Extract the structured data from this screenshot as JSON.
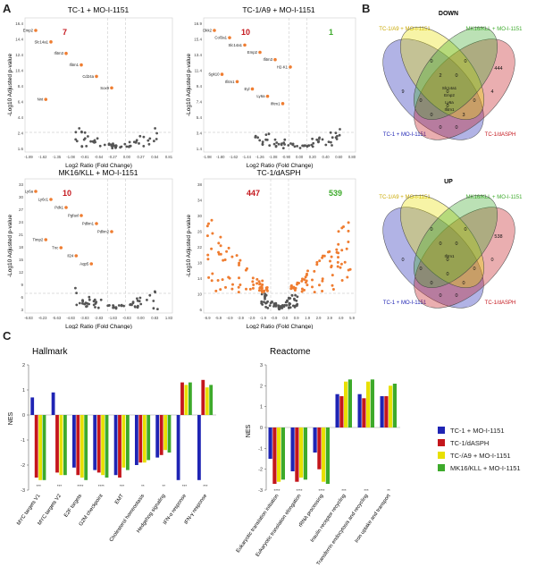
{
  "panels": {
    "a": "A",
    "b": "B",
    "c": "C"
  },
  "colors": {
    "tc1": "#1f24b4",
    "dasph": "#c4161c",
    "a9": "#e8e000",
    "mk": "#3daa2b",
    "up": "#ef7d31",
    "gray": "#555555"
  },
  "volcanoes": [
    {
      "title": "TC-1 + MO-I-1151",
      "count_down": "7",
      "count_up": "",
      "xlabel": "Log2 Ratio (Fold Change)",
      "ylabel": "-Log10 Adjusted p-value",
      "xticks": [
        "-1.89",
        "-1.62",
        "-1.35",
        "-1.08",
        "-0.81",
        "-0.54",
        "-0.27",
        "0.00",
        "0.27",
        "0.54",
        "0.81"
      ],
      "yticks": [
        "16.4",
        "14.4",
        "12.4",
        "10.4",
        "8.4",
        "6.4",
        "4.4",
        "2.4",
        "1.6"
      ],
      "labels": [
        "Emp2",
        "Slc14a1",
        "Ifitm3",
        "Ifitm1",
        "Cd24a",
        "Sox9",
        "Nnt"
      ]
    },
    {
      "title": "TC-1/A9 + MO-I-1151",
      "count_down": "10",
      "count_up": "1",
      "xlabel": "Log2 Ratio (Fold Change)",
      "ylabel": "-Log10 Adjusted p-value",
      "xticks": [
        "-1.98",
        "-1.80",
        "-1.62",
        "-1.44",
        "-1.26",
        "-1.08",
        "-0.90",
        "0.00",
        "0.20",
        "0.40",
        "0.60",
        "0.80"
      ],
      "yticks": [
        "16.9",
        "15.4",
        "13.4",
        "11.4",
        "9.4",
        "7.4",
        "5.4",
        "3.4",
        "1.4"
      ],
      "labels": [
        "Dkk2",
        "Col3a1",
        "Slc14a1",
        "Emp2",
        "Ifitm3",
        "H2-K1",
        "Sgk10",
        "Ifitm1",
        "Eyl",
        "Ly6a",
        "Ifitm1"
      ]
    },
    {
      "title": "MK16/KLL + MO-I-1151",
      "count_down": "10",
      "count_up": "",
      "xlabel": "Log2 Ratio (Fold Change)",
      "ylabel": "-Log10 Adjusted p-value",
      "xticks": [
        "-6.83",
        "-6.23",
        "-5.63",
        "-4.83",
        "-3.83",
        "-2.83",
        "-1.83",
        "-0.83",
        "0.00",
        "0.83",
        "1.83"
      ],
      "yticks": [
        "33",
        "30",
        "27",
        "24",
        "21",
        "18",
        "15",
        "12",
        "9",
        "6",
        "3"
      ],
      "labels": [
        "Ly6a",
        "Ly6c1",
        "Pdk1",
        "Pgfaxl",
        "Pdlim1",
        "Pdlim2",
        "Timp2",
        "Tnc",
        "Il24",
        "Aqp5"
      ]
    },
    {
      "title": "TC-1/dASPH",
      "count_down": "447",
      "count_up": "539",
      "xlabel": "Log2 Ratio (Fold Change)",
      "ylabel": "-Log10 Adjusted p-value",
      "xticks": [
        "-6.9",
        "-5.9",
        "-4.9",
        "-3.9",
        "-2.9",
        "-1.9",
        "-0.9",
        "0.0",
        "0.9",
        "1.9",
        "2.9",
        "3.9",
        "4.9",
        "5.9"
      ],
      "yticks": [
        "38",
        "34",
        "30",
        "26",
        "22",
        "18",
        "14",
        "10",
        "6"
      ],
      "labels": []
    }
  ],
  "venn": [
    {
      "title": "DOWN",
      "set_labels": [
        "TC-1/A9 + MO-I-1151",
        "MK16/KLL + MO-I-1151",
        "TC-1 + MO-I-1151",
        "TC-1/dASPH"
      ],
      "values": [
        "0",
        "0",
        "9",
        "4",
        "2",
        "0",
        "0",
        "0",
        "0",
        "0",
        "3",
        "0",
        "0",
        "0",
        "444"
      ],
      "genes": [
        "Slc14a1",
        "Emp2",
        "Ly6a",
        "Ifitm1"
      ]
    },
    {
      "title": "UP",
      "set_labels": [
        "TC-1/A9 + MO-I-1151",
        "MK16/KLL + MO-I-1151",
        "TC-1 + MO-I-1151",
        "TC-1/dASPH"
      ],
      "values": [
        "0",
        "0",
        "0",
        "0",
        "0",
        "0",
        "0",
        "0",
        "0",
        "0",
        "0",
        "0",
        "0",
        "0",
        "538"
      ],
      "genes": [
        "Ifitm1"
      ]
    }
  ],
  "chart_data": [
    {
      "type": "bar",
      "title": "Hallmark",
      "ylabel": "NES",
      "ylim": [
        -3,
        2
      ],
      "yticks": [
        "2",
        "1",
        "0",
        "-1",
        "-2",
        "-3"
      ],
      "categories": [
        "MYC targets V1",
        "MYC targets V2",
        "E2F targets",
        "G2M checkpoint",
        "EMT",
        "Cholesterol homeostasis",
        "Hedgehog signaling",
        "IFN-α response",
        "IFN-γ response"
      ],
      "series": [
        {
          "name": "TC-1 + MO-I-1151",
          "values": [
            0.7,
            0.9,
            -2.1,
            -2.2,
            -2.4,
            -2.0,
            -1.7,
            -2.6,
            -2.6
          ]
        },
        {
          "name": "TC-1/dASPH",
          "values": [
            -2.5,
            -2.3,
            -2.4,
            -2.3,
            -2.5,
            -1.9,
            -1.6,
            1.3,
            1.4
          ]
        },
        {
          "name": "TC-1/A9 + MO-I-1151",
          "values": [
            -2.6,
            -2.4,
            -2.5,
            -2.4,
            -2.1,
            -1.9,
            -1.4,
            1.2,
            1.1
          ]
        },
        {
          "name": "MK16/KLL + MO-I-1151",
          "values": [
            -2.6,
            -2.4,
            -2.6,
            -2.5,
            -2.2,
            -1.8,
            -1.5,
            1.3,
            1.2
          ]
        }
      ],
      "significance": [
        "***",
        "***",
        "****",
        "****",
        "***",
        "**",
        "**",
        "***",
        "***"
      ]
    },
    {
      "type": "bar",
      "title": "Reactome",
      "ylabel": "NES",
      "ylim": [
        -3,
        3
      ],
      "yticks": [
        "3",
        "2",
        "1",
        "0",
        "-1",
        "-2",
        "-3"
      ],
      "categories": [
        "Eukaryotic translation initiation",
        "Eukaryotic translation elongation",
        "rRNA processing",
        "Insulin receptor recycling",
        "Transferrin endocytosis and recycling",
        "Iron uptake and transport"
      ],
      "series": [
        {
          "name": "TC-1 + MO-I-1151",
          "values": [
            -1.5,
            -2.1,
            -1.2,
            1.6,
            1.6,
            1.5
          ]
        },
        {
          "name": "TC-1/dASPH",
          "values": [
            -2.7,
            -2.6,
            -2.0,
            1.5,
            1.4,
            1.5
          ]
        },
        {
          "name": "TC-1/A9 + MO-I-1151",
          "values": [
            -2.6,
            -2.4,
            -2.6,
            2.2,
            2.2,
            2.0
          ]
        },
        {
          "name": "MK16/KLL + MO-I-1151",
          "values": [
            -2.5,
            -2.5,
            -2.7,
            2.3,
            2.3,
            2.1
          ]
        }
      ],
      "significance": [
        "****",
        "****",
        "****",
        "***",
        "***",
        "**"
      ]
    }
  ],
  "legend": [
    "TC-1 + MO-I-1151",
    "TC-1/dASPH",
    "TC-/A9 + MO-I-1151",
    "MK16/KLL + MO-I-1151"
  ]
}
